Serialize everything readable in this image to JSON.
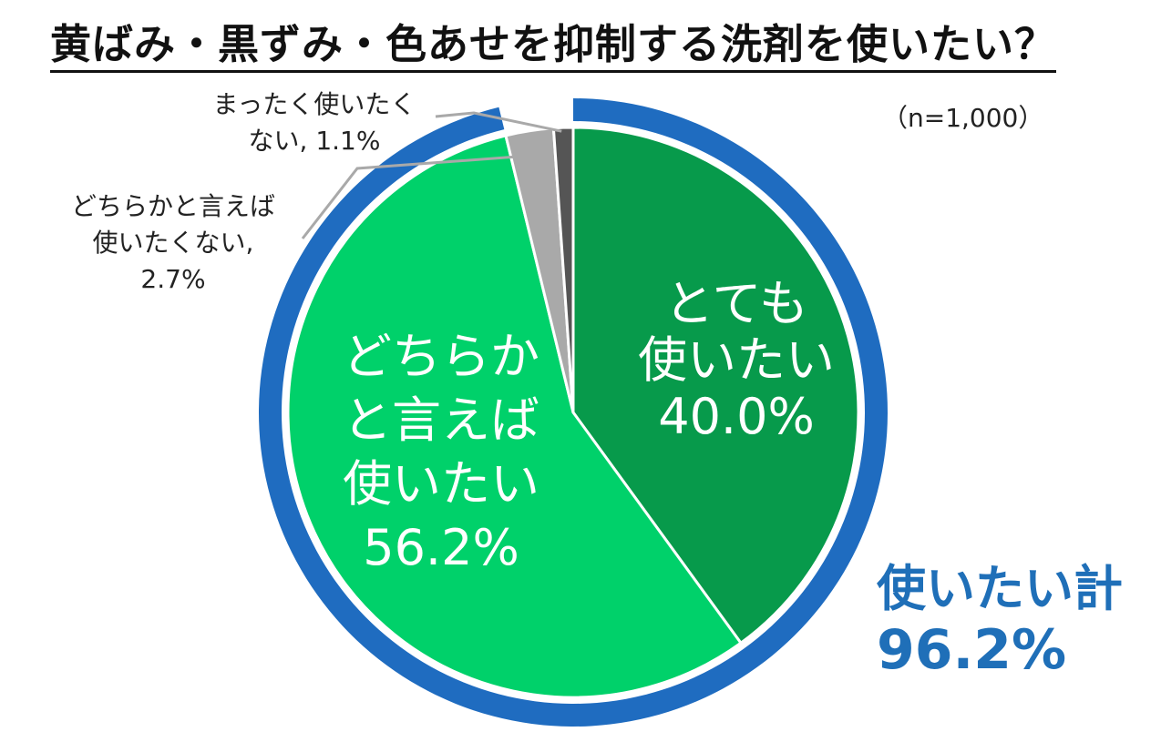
{
  "title": "黄ばみ・黒ずみ・色あせを抑制する洗剤を使いたい？",
  "sample_size": "（n=1,000）",
  "total": {
    "label": "使いたい計",
    "value": "96.2%"
  },
  "colors": {
    "very_want": "#079a4b",
    "somewhat_want": "#00d16a",
    "somewhat_not": "#a9a9a9",
    "not_at_all": "#555555",
    "outer_ring": "#1f6cc0",
    "total_text": "#1f6fb8"
  },
  "chart_data": {
    "type": "pie",
    "title": "黄ばみ・黒ずみ・色あせを抑制する洗剤を使いたい？",
    "start": "top",
    "direction": "clockwise",
    "slices": [
      {
        "key": "very_want",
        "lines": [
          "とても",
          "使いたい",
          "40.0%"
        ],
        "value": 40.0,
        "color": "#079a4b",
        "label_position": "inside"
      },
      {
        "key": "somewhat_want",
        "lines": [
          "どちらか",
          "と言えば",
          "使いたい",
          "56.2%"
        ],
        "value": 56.2,
        "color": "#00d16a",
        "label_position": "inside"
      },
      {
        "key": "somewhat_not",
        "lines": [
          "どちらかと言えば",
          "使いたくない,",
          "2.7%"
        ],
        "value": 2.7,
        "color": "#a9a9a9",
        "label_position": "outside-left"
      },
      {
        "key": "not_at_all",
        "lines": [
          "まったく使いたく",
          "ない, 1.1%"
        ],
        "value": 1.1,
        "color": "#555555",
        "label_position": "outside-top"
      }
    ],
    "outer_ring": {
      "covers_share": 96.2,
      "label": "使いたい計",
      "value": "96.2%",
      "color": "#1f6cc0"
    }
  }
}
